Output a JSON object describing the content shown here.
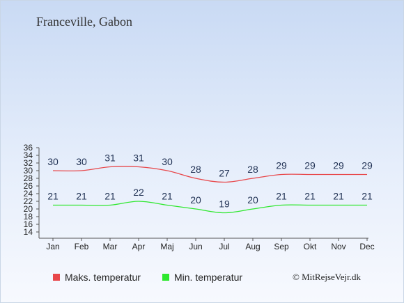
{
  "location": "Franceville, Gabon",
  "chart_data": {
    "type": "line",
    "categories": [
      "Jan",
      "Feb",
      "Mar",
      "Apr",
      "Maj",
      "Jun",
      "Jul",
      "Aug",
      "Sep",
      "Okt",
      "Nov",
      "Dec"
    ],
    "ylim": [
      14,
      36
    ],
    "yticks": [
      14,
      16,
      18,
      20,
      22,
      24,
      26,
      28,
      30,
      32,
      34,
      36
    ],
    "grid": false,
    "series": [
      {
        "name": "Maks. temperatur",
        "color": "#e8474a",
        "values": [
          30,
          30,
          31,
          31,
          30,
          28,
          27,
          28,
          29,
          29,
          29,
          29
        ]
      },
      {
        "name": "Min. temperatur",
        "color": "#2ee82e",
        "values": [
          21,
          21,
          21,
          22,
          21,
          20,
          19,
          20,
          21,
          21,
          21,
          21
        ]
      }
    ]
  },
  "copyright": "© MitRejseVejr.dk"
}
